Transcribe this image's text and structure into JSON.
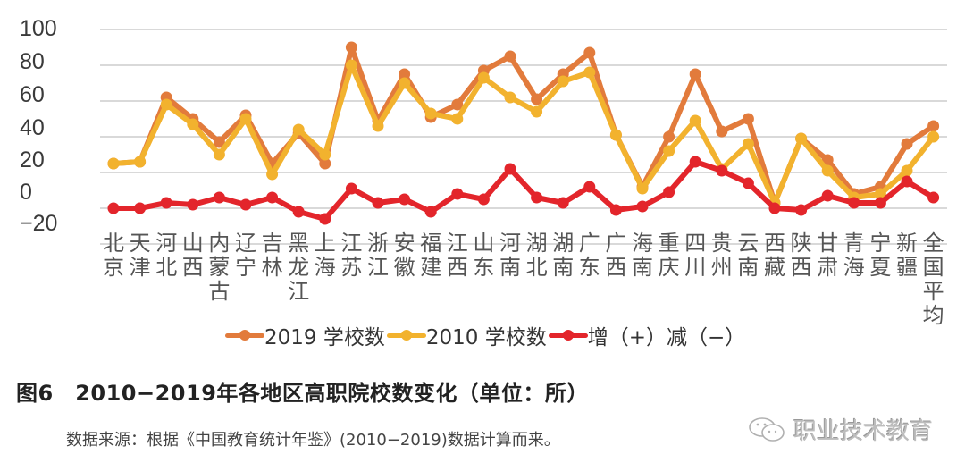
{
  "chart_data": {
    "type": "line",
    "title": "图6　2010-2019年各地区高职院校数变化（单位：所）",
    "source": "数据来源：根据《中国教育统计年鉴》(2010-2019)数据计算而来。",
    "xlabel": "",
    "ylabel": "",
    "ylim": [
      -20,
      100
    ],
    "yticks": [
      100,
      80,
      60,
      40,
      20,
      0,
      -20
    ],
    "ytick_labels": [
      "100",
      "80",
      "60",
      "40",
      "20",
      "0",
      "−20"
    ],
    "grid": true,
    "legend_position": "bottom",
    "categories": [
      "北京",
      "天津",
      "河北",
      "山西",
      "内蒙古",
      "辽宁",
      "吉林",
      "黑龙江",
      "上海",
      "江苏",
      "浙江",
      "安徽",
      "福建",
      "江西",
      "山东",
      "河南",
      "湖北",
      "湖南",
      "广东",
      "广西",
      "海南",
      "重庆",
      "四川",
      "贵州",
      "云南",
      "西藏",
      "陕西",
      "甘肃",
      "青海",
      "宁夏",
      "新疆",
      "全国平均"
    ],
    "series": [
      {
        "name": "2019 学校数",
        "color": "#E27B3C",
        "values": [
          25,
          26,
          62,
          50,
          37,
          52,
          25,
          42,
          25,
          90,
          49,
          75,
          51,
          58,
          77,
          85,
          61,
          75,
          87,
          41,
          12,
          40,
          75,
          43,
          50,
          3,
          39,
          27,
          8,
          12,
          36,
          46
        ]
      },
      {
        "name": "2010 学校数",
        "color": "#F2B22E",
        "values": [
          25,
          26,
          58,
          47,
          30,
          50,
          19,
          44,
          30,
          80,
          46,
          70,
          53,
          50,
          73,
          62,
          54,
          71,
          76,
          41,
          11,
          32,
          49,
          22,
          36,
          3,
          39,
          21,
          6,
          8,
          21,
          40
        ]
      },
      {
        "name": "增（+）减（−）",
        "color": "#E3252B",
        "values": [
          0,
          0,
          3,
          2,
          6,
          2,
          6,
          -2,
          -6,
          11,
          3,
          5,
          -2,
          8,
          5,
          22,
          6,
          3,
          12,
          -1,
          1,
          9,
          26,
          21,
          14,
          0,
          -1,
          7,
          3,
          3,
          15,
          6
        ]
      }
    ]
  },
  "legend": {
    "items": [
      {
        "label": "2019 学校数",
        "color": "#E27B3C"
      },
      {
        "label": "2010 学校数",
        "color": "#F2B22E"
      },
      {
        "label": "增（+）减（−）",
        "color": "#E3252B"
      }
    ]
  },
  "caption": {
    "title": "图6　2010−2019年各地区高职院校数变化（单位：所）",
    "source": "数据来源：根据《中国教育统计年鉴》(2010−2019)数据计算而来。"
  },
  "watermark": {
    "icon": "wechat-icon",
    "text": "职业技术教育"
  },
  "colors": {
    "grid": "#d9d9d9",
    "axis_text": "#3a3a3a"
  }
}
